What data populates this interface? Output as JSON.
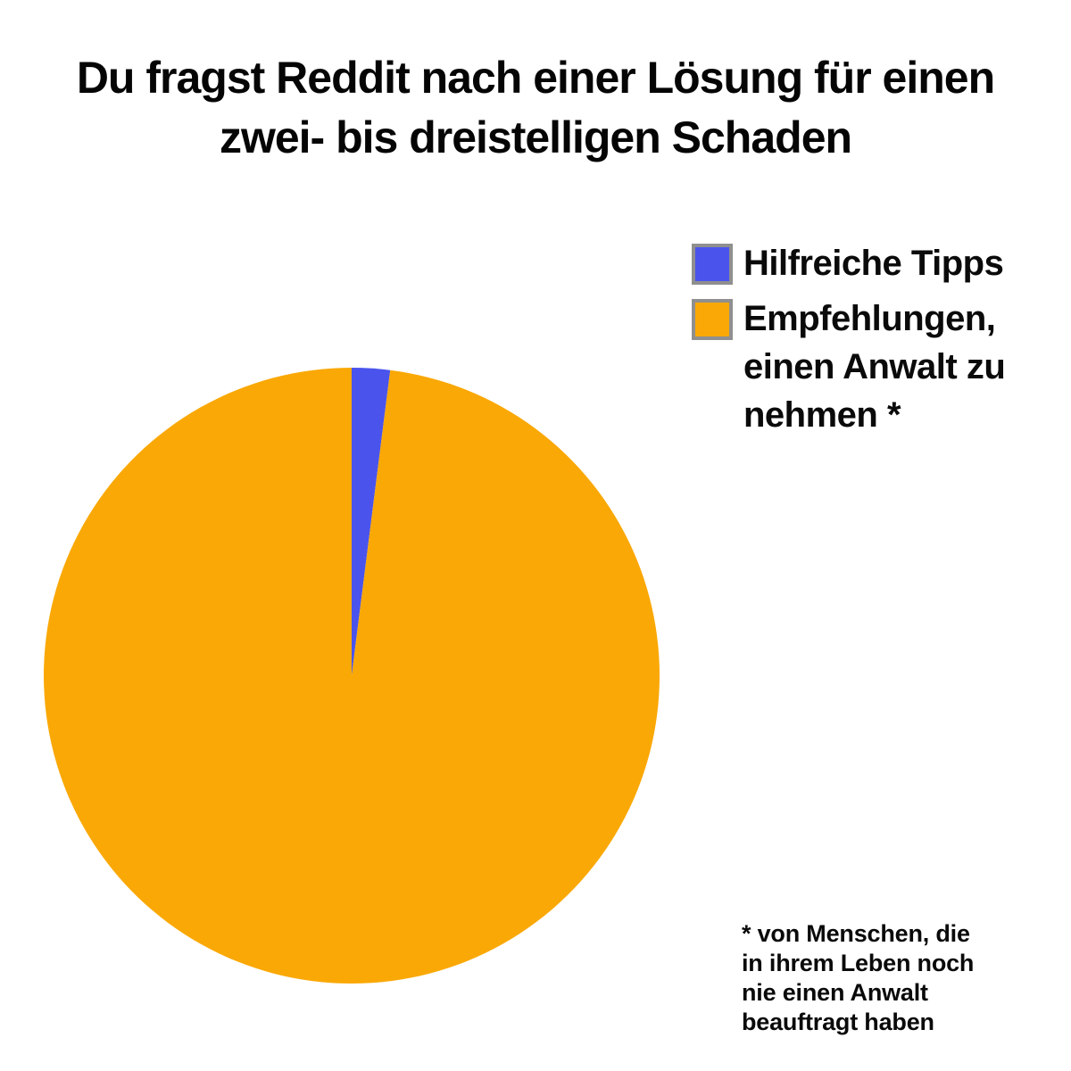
{
  "page": {
    "background_color": "#ffffff",
    "text_color": "#0a0a0a"
  },
  "title": {
    "lines": [
      "Du fragst Reddit nach einer Lösung für einen",
      "zwei- bis dreistelligen Schaden"
    ]
  },
  "legend": {
    "position": "right",
    "swatch_border_color": "#8F8F8F",
    "items": [
      {
        "swatch_color": "#4A54EC",
        "label": "Hilfreiche Tipps",
        "lines": [
          "Hilfreiche Tipps"
        ]
      },
      {
        "swatch_color": "#FAA805",
        "label": "Empfehlungen, einen Anwalt zu nehmen *",
        "lines": [
          "Empfehlungen,",
          "einen Anwalt zu",
          "nehmen *"
        ]
      }
    ]
  },
  "footnote": {
    "text": "* von Menschen, die in ihrem Leben noch nie einen Anwalt beauftragt haben",
    "lines": [
      "* von Menschen, die",
      "in ihrem Leben noch",
      "nie einen Anwalt",
      "beauftragt haben"
    ]
  },
  "chart_data": {
    "type": "pie",
    "title": "Du fragst Reddit nach einer Lösung für einen zwei- bis dreistelligen Schaden",
    "slices": [
      {
        "label": "Hilfreiche Tipps",
        "value": 2,
        "color": "#4A54EC"
      },
      {
        "label": "Empfehlungen, einen Anwalt zu nehmen *",
        "value": 98,
        "color": "#FAA805"
      }
    ],
    "start_angle_deg": 0,
    "direction": "clockwise",
    "legend_position": "right",
    "grid": false,
    "footnote": "* von Menschen, die in ihrem Leben noch nie einen Anwalt beauftragt haben"
  }
}
